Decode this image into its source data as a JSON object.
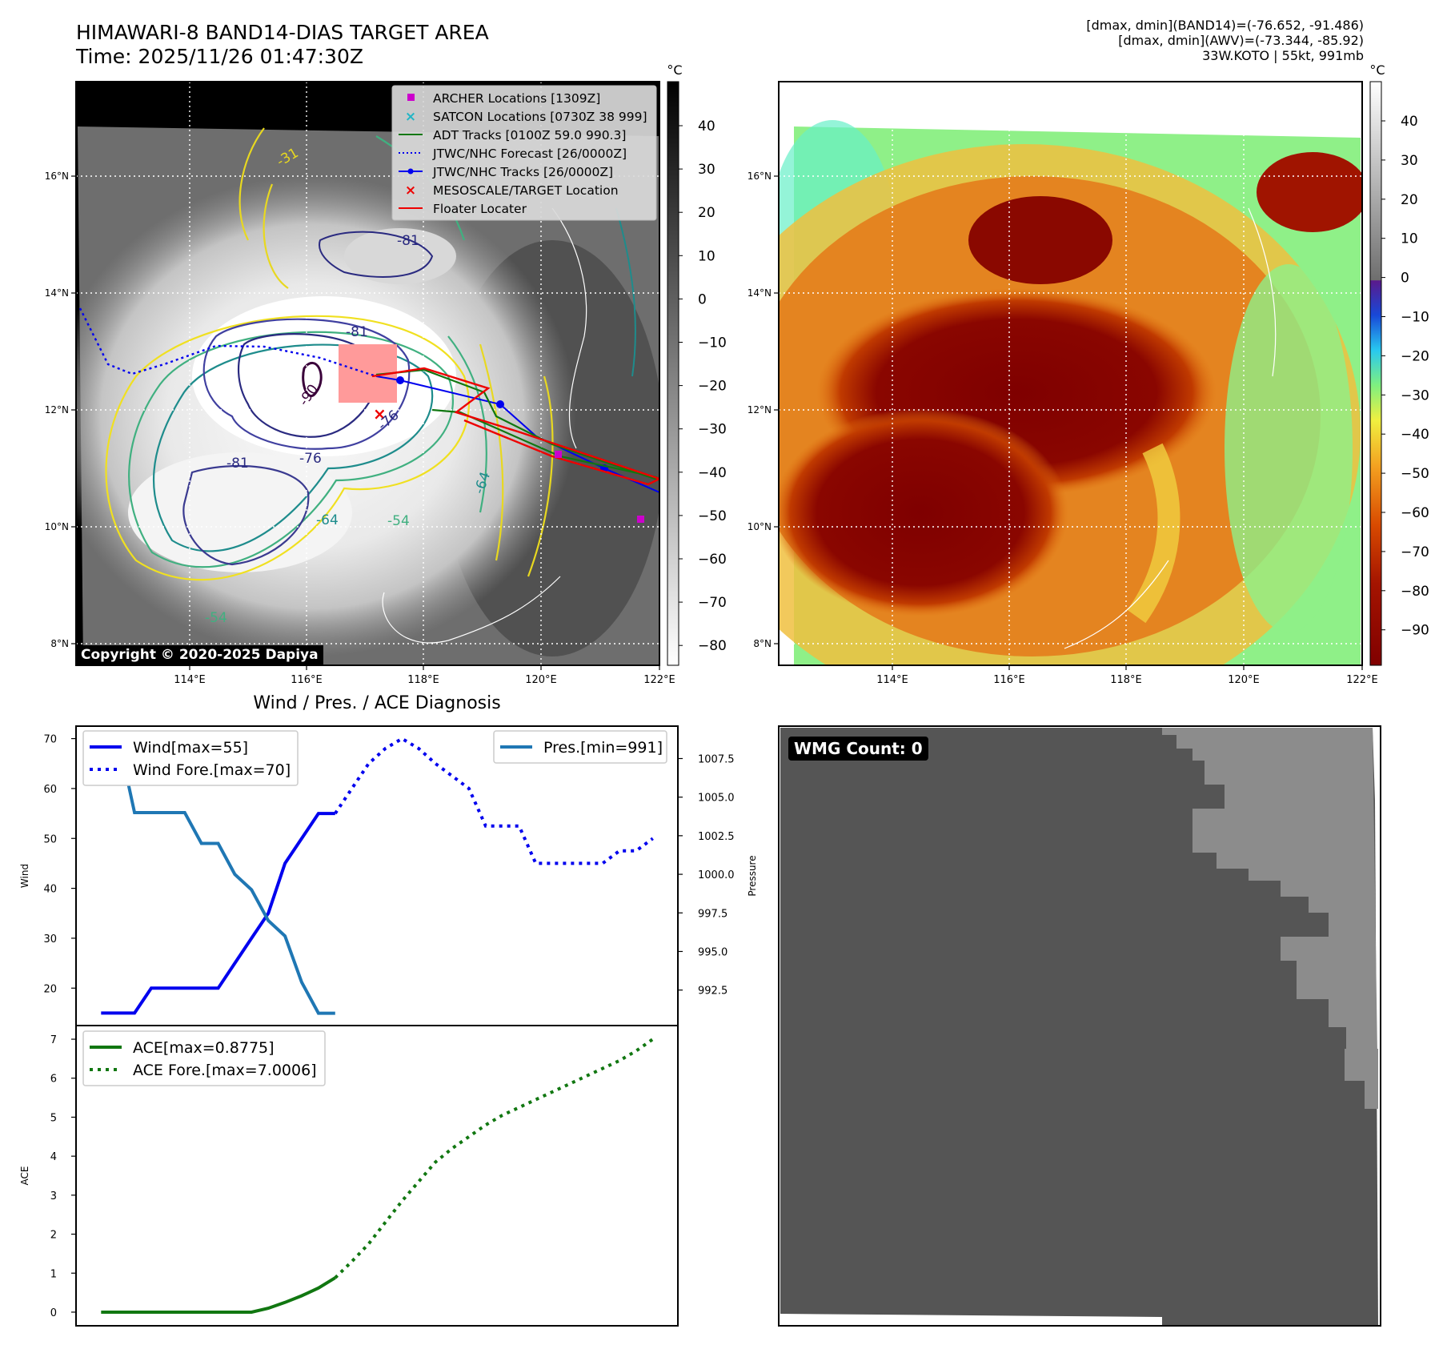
{
  "header": {
    "title_line1": "HIMAWARI-8 BAND14-DIAS TARGET AREA",
    "title_line2": "Time: 2025/11/26 01:47:30Z",
    "info_line1": "[dmax, dmin](BAND14)=(-76.652, -91.486)",
    "info_line2": "[dmax, dmin](AWV)=(-73.344, -85.92)",
    "info_line3": "33W.KOTO | 55kt, 991mb"
  },
  "ir_panel": {
    "lon_ticks": [
      "114°E",
      "116°E",
      "118°E",
      "120°E",
      "122°E"
    ],
    "lat_ticks": [
      "16°N",
      "14°N",
      "12°N",
      "10°N",
      "8°N"
    ],
    "legend": [
      {
        "label": "ARCHER Locations [1309Z]",
        "color": "#cc00cc",
        "symbol": "square"
      },
      {
        "label": "SATCON Locations [0730Z 38 999]",
        "color": "#22b5c5",
        "symbol": "x"
      },
      {
        "label": "ADT Tracks [0100Z 59.0 990.3]",
        "color": "#117711",
        "symbol": "line"
      },
      {
        "label": "JTWC/NHC Forecast [26/0000Z]",
        "color": "#0000ee",
        "symbol": "dotted"
      },
      {
        "label": "JTWC/NHC Tracks [26/0000Z]",
        "color": "#0000ee",
        "symbol": "line-dot"
      },
      {
        "label": "MESOSCALE/TARGET Location",
        "color": "#ee0000",
        "symbol": "x"
      },
      {
        "label": "Floater Locater",
        "color": "#ee0000",
        "symbol": "line"
      }
    ],
    "contour_labels": [
      "-81",
      "-81",
      "-90",
      "-76",
      "-76",
      "-81",
      "-64",
      "-54",
      "-64",
      "-54",
      "-31"
    ],
    "copyright": "Copyright © 2020-2025 Dapiya"
  },
  "ir_colorbar": {
    "unit": "°C",
    "ticks": [
      "40",
      "30",
      "20",
      "10",
      "0",
      "−10",
      "−20",
      "−30",
      "−40",
      "−50",
      "−60",
      "−70",
      "−80"
    ]
  },
  "enh_colorbar": {
    "unit": "°C",
    "ticks": [
      "40",
      "30",
      "20",
      "10",
      "0",
      "−10",
      "−20",
      "−30",
      "−40",
      "−50",
      "−60",
      "−70",
      "−80",
      "−90"
    ]
  },
  "diag_title": "Wind / Pres. / ACE Diagnosis",
  "wmg": {
    "label": "WMG Count: 0",
    "dark_color": "#555555",
    "light_color": "#8c8c8c"
  },
  "chart_data": [
    {
      "type": "line",
      "title": "Wind / Pres. / ACE Diagnosis",
      "xlabel": "",
      "ylabel": "Wind",
      "y2label": "Pressure",
      "ylim": [
        12.5,
        72.5
      ],
      "y2lim": [
        990.2,
        1009.6
      ],
      "yticks": [
        20,
        30,
        40,
        50,
        60,
        70
      ],
      "y2ticks": [
        992.5,
        995.0,
        997.5,
        1000.0,
        1002.5,
        1005.0,
        1007.5
      ],
      "y2tick_labels": [
        "992.5",
        "995.0",
        "997.5",
        "1000.0",
        "1002.5",
        "1005.0",
        "1007.5"
      ],
      "xlim": [
        -1.5,
        34.5
      ],
      "series": [
        {
          "name": "Wind[max=55]",
          "axis": "left",
          "color": "#0000ee",
          "style": "solid",
          "x": [
            0,
            1,
            2,
            3,
            4,
            5,
            6,
            7,
            8,
            9,
            10,
            11,
            12,
            13,
            14
          ],
          "y": [
            15,
            15,
            15,
            20,
            20,
            20,
            20,
            20,
            25,
            30,
            35,
            45,
            50,
            55,
            55
          ]
        },
        {
          "name": "Wind Fore.[max=70]",
          "axis": "left",
          "color": "#0000ee",
          "style": "dotted",
          "x": [
            14,
            15,
            16,
            17,
            18,
            19,
            20,
            21,
            22,
            23,
            24,
            25,
            26,
            27,
            28,
            29,
            30,
            31,
            32,
            33
          ],
          "y": [
            55,
            60,
            65,
            68,
            70,
            68,
            65,
            62.5,
            60,
            52.5,
            52.5,
            52.5,
            45,
            45,
            45,
            45,
            45,
            47.5,
            47.5,
            50
          ]
        },
        {
          "name": "Pres.[min=991]",
          "axis": "right",
          "color": "#1f77b4",
          "style": "solid",
          "x": [
            0,
            1,
            2,
            3,
            4,
            5,
            6,
            7,
            8,
            9,
            10,
            11,
            12,
            13,
            14
          ],
          "y": [
            1009,
            1009,
            1004,
            1004,
            1004,
            1004,
            1002,
            1002,
            1000,
            999,
            997,
            996,
            993,
            991,
            991
          ]
        }
      ],
      "legend_left": [
        "Wind[max=55]",
        "Wind Fore.[max=70]"
      ],
      "legend_right": [
        "Pres.[min=991]"
      ]
    },
    {
      "type": "line",
      "ylabel": "ACE",
      "ylim": [
        -0.35,
        7.35
      ],
      "yticks": [
        0,
        1,
        2,
        3,
        4,
        5,
        6,
        7
      ],
      "xlim": [
        -1.5,
        34.5
      ],
      "series": [
        {
          "name": "ACE[max=0.8775]",
          "color": "#117711",
          "style": "solid",
          "x": [
            0,
            1,
            2,
            3,
            4,
            5,
            6,
            7,
            8,
            9,
            10,
            11,
            12,
            13,
            14
          ],
          "y": [
            0,
            0,
            0,
            0,
            0,
            0,
            0,
            0,
            0,
            0,
            0.1,
            0.25,
            0.42,
            0.62,
            0.88
          ]
        },
        {
          "name": "ACE Fore.[max=7.0006]",
          "color": "#117711",
          "style": "dotted",
          "x": [
            14,
            15,
            16,
            17,
            18,
            19,
            20,
            21,
            22,
            23,
            24,
            25,
            26,
            27,
            28,
            29,
            30,
            31,
            32,
            33
          ],
          "y": [
            0.88,
            1.3,
            1.75,
            2.3,
            2.85,
            3.35,
            3.85,
            4.2,
            4.5,
            4.8,
            5.05,
            5.25,
            5.45,
            5.65,
            5.85,
            6.05,
            6.25,
            6.45,
            6.7,
            7.0
          ]
        }
      ],
      "legend": [
        "ACE[max=0.8775]",
        "ACE Fore.[max=7.0006]"
      ]
    }
  ]
}
